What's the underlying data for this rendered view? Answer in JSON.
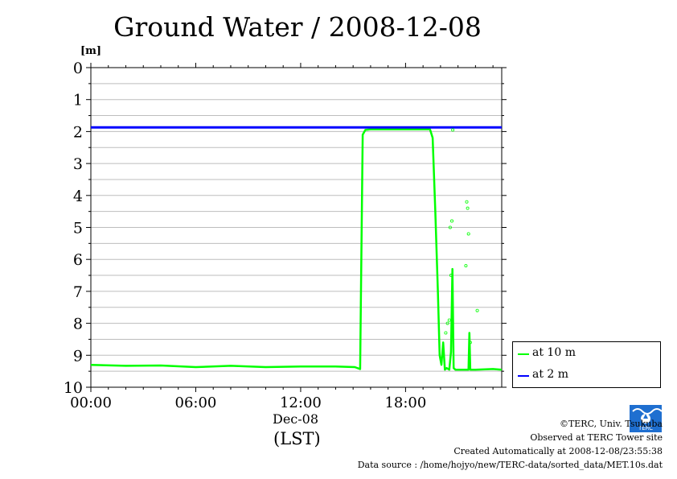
{
  "header": {
    "title": "Ground Water / 2008-12-08"
  },
  "footer": {
    "credit_line1": "©TERC, Univ. Tsukuba",
    "credit_line2": "Observed at TERC Tower site",
    "credit_line3": "Created Automatically at 2008-12-08/23:55:38",
    "credit_line4": "Data source : /home/hojyo/new/TERC-data/sorted_data/MET.10s.dat"
  },
  "logo": {
    "icon": "terc-logo-icon",
    "text": "TERC"
  },
  "chart_data": {
    "type": "line",
    "title": "Ground Water / 2008-12-08",
    "ylabel": "[m]",
    "xlabel_date": "Dec-08",
    "xlabel_unit": "(LST)",
    "x_unit": "hours",
    "xlim": [
      0,
      23.5
    ],
    "ylim": [
      10,
      0
    ],
    "y_inverted": true,
    "yticks": [
      0,
      1,
      2,
      3,
      4,
      5,
      6,
      7,
      8,
      9,
      10
    ],
    "ytick_labels": [
      "0",
      "1",
      "2",
      "3",
      "4",
      "5",
      "6",
      "7",
      "8",
      "9",
      "10"
    ],
    "xticks": [
      0,
      6,
      12,
      18
    ],
    "xtick_labels": [
      "00:00",
      "06:00",
      "12:00",
      "18:00"
    ],
    "grid": true,
    "legend_position": "bottom-right",
    "series": [
      {
        "name": "at 10 m",
        "color": "#00ff00",
        "x": [
          0,
          2,
          4,
          6,
          8,
          10,
          12,
          14,
          15.1,
          15.4,
          15.55,
          15.7,
          16,
          17,
          18,
          19,
          19.4,
          19.55,
          19.7,
          19.85,
          19.95,
          20.05,
          20.15,
          20.25,
          20.35,
          20.5,
          20.6,
          20.68,
          20.75,
          20.85,
          21,
          21.2,
          21.6,
          21.65,
          21.7,
          21.8,
          22,
          23,
          23.5
        ],
        "y": [
          9.3,
          9.33,
          9.32,
          9.37,
          9.33,
          9.37,
          9.35,
          9.35,
          9.37,
          9.43,
          2.1,
          1.95,
          1.93,
          1.93,
          1.93,
          1.93,
          1.93,
          2.2,
          4.5,
          7.0,
          9.0,
          9.3,
          8.6,
          9.45,
          9.4,
          9.45,
          8.9,
          6.3,
          9.4,
          9.45,
          9.45,
          9.45,
          9.45,
          8.3,
          9.45,
          9.45,
          9.45,
          9.43,
          9.45
        ]
      },
      {
        "name": "at 2 m",
        "color": "#0000ff",
        "x": [
          0,
          23.5
        ],
        "y": [
          1.87,
          1.87
        ]
      }
    ],
    "scatter_points": {
      "series": "at 10 m",
      "x": [
        20.3,
        20.4,
        20.5,
        20.55,
        20.6,
        20.65,
        20.7,
        21.5,
        21.55,
        21.6,
        21.7,
        22.1,
        21.45
      ],
      "y": [
        8.3,
        8.0,
        7.9,
        5.0,
        6.5,
        4.8,
        1.95,
        4.2,
        4.4,
        5.2,
        8.6,
        7.6,
        6.2
      ]
    }
  }
}
